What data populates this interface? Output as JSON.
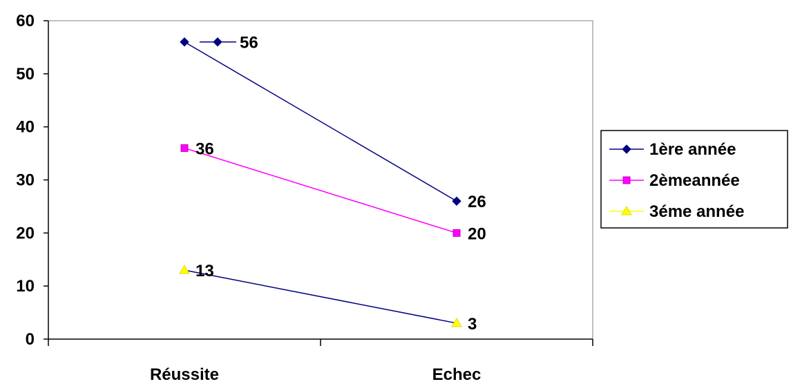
{
  "chart_data": {
    "type": "line",
    "categories": [
      "Réussite",
      "Echec"
    ],
    "ylim": [
      0,
      60
    ],
    "yticks": [
      0,
      10,
      20,
      30,
      40,
      50,
      60
    ],
    "grid": false,
    "legend_position": "right",
    "series": [
      {
        "name": "1ère année",
        "values": [
          56,
          26
        ],
        "data_labels": [
          "56",
          "26"
        ],
        "color": "#000080",
        "line_color": "#000080",
        "marker": "diamond"
      },
      {
        "name": "2èmeannée",
        "values": [
          36,
          20
        ],
        "data_labels": [
          "36",
          "20"
        ],
        "color": "#FF00FF",
        "line_color": "#FF00FF",
        "marker": "square"
      },
      {
        "name": "3éme année",
        "values": [
          13,
          3
        ],
        "data_labels": [
          "13",
          "3"
        ],
        "color": "#FFFF00",
        "line_color": "#000080",
        "marker": "triangle"
      }
    ]
  }
}
